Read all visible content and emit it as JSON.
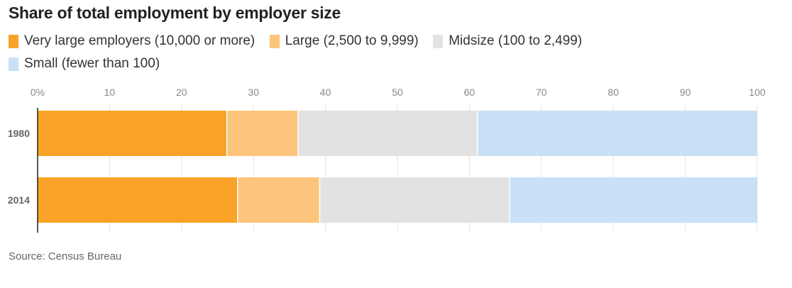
{
  "chart_data": {
    "type": "bar",
    "orientation": "horizontal",
    "stacked": true,
    "title": "Share of total employment by employer size",
    "categories": [
      "1980",
      "2014"
    ],
    "series": [
      {
        "name": "Very large employers (10,000 or more)",
        "color": "#F8A327",
        "values": [
          26.3,
          27.8
        ]
      },
      {
        "name": "Large (2,500 to 9,999)",
        "color": "#FDC57B",
        "values": [
          9.9,
          11.4
        ]
      },
      {
        "name": "Midsize (100 to 2,499)",
        "color": "#E2E2E3",
        "values": [
          24.9,
          26.4
        ]
      },
      {
        "name": "Small (fewer than 100)",
        "color": "#C9E1F6",
        "values": [
          38.9,
          34.4
        ]
      }
    ],
    "xlim": [
      0,
      100
    ],
    "xticks": [
      0,
      10,
      20,
      30,
      40,
      50,
      60,
      70,
      80,
      90,
      100
    ],
    "xtick_labels": [
      "0%",
      "10",
      "20",
      "30",
      "40",
      "50",
      "60",
      "70",
      "80",
      "90",
      "100"
    ],
    "grid": true,
    "legend_position": "top-left",
    "source": "Source: Census Bureau"
  }
}
